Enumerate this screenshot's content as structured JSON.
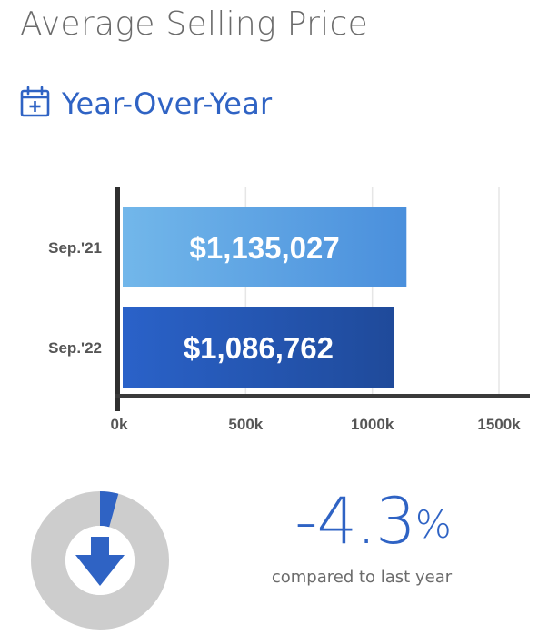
{
  "header": {
    "title": "Average Selling Price",
    "subtitle": "Year-Over-Year",
    "subtitle_icon": "calendar-plus-icon"
  },
  "chart_data": {
    "type": "bar",
    "orientation": "horizontal",
    "categories": [
      "Sep.'21",
      "Sep.'22"
    ],
    "values": [
      1135027,
      1086762
    ],
    "value_labels": [
      "$1,135,027",
      "$1,086,762"
    ],
    "xlim": [
      0,
      1500000
    ],
    "x_ticks": [
      0,
      500000,
      1000000,
      1500000
    ],
    "x_tick_labels": [
      "0k",
      "500k",
      "1000k",
      "1500k"
    ],
    "grid": true,
    "colors": [
      "#5fa8e6",
      "#2456b8"
    ]
  },
  "change": {
    "value": "-4.3",
    "unit": "%",
    "caption": "compared to last year",
    "direction": "down",
    "indicator_icon": "arrow-down-icon",
    "fraction": 0.043,
    "colors": {
      "accent": "#2f63c4",
      "track": "#cdcdcd"
    }
  }
}
